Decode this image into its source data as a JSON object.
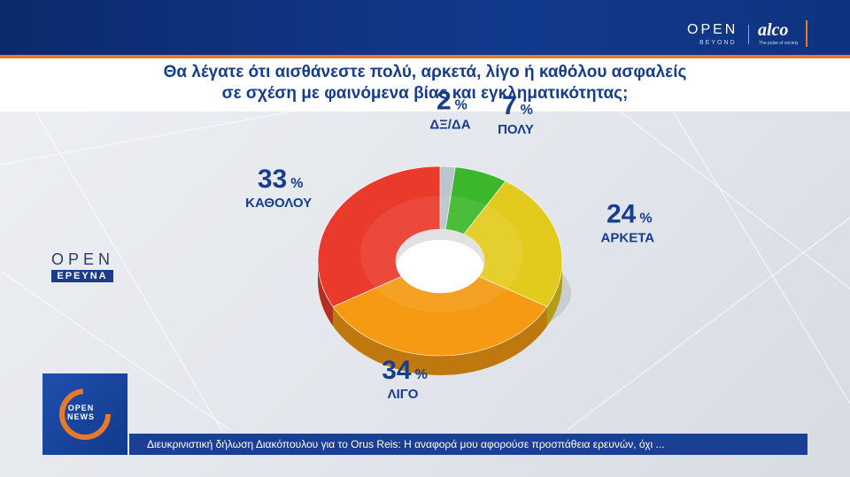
{
  "header": {
    "brand_open": "OPEN",
    "brand_beyond": "BEYOND",
    "brand_alco": "alco",
    "brand_alco_sub": "The pulse of society",
    "colors": {
      "bar": "#123a8c",
      "accent": "#e8792a"
    }
  },
  "title_lines": [
    "Θα λέγατε ότι αισθάνεστε πολύ, αρκετά, λίγο ή καθόλου ασφαλείς",
    "σε σχέση με φαινόμενα βίας και εγκληματικότητας;"
  ],
  "logo": {
    "open": "OPEN",
    "subtitle": "ΕΡΕΥΝΑ"
  },
  "chart_data": {
    "type": "pie",
    "title": "Θα λέγατε ότι αισθάνεστε πολύ, αρκετά, λίγο ή καθόλου ασφαλείς σε σχέση με φαινόμενα βίας και εγκληματικότητας;",
    "donut": true,
    "unit": "%",
    "slices": [
      {
        "label": "ΔΞ/ΔΑ",
        "value": 2,
        "color": "#b9c4cc"
      },
      {
        "label": "ΠΟΛΥ",
        "value": 7,
        "color": "#3cb72b"
      },
      {
        "label": "ΑΡΚΕΤΑ",
        "value": 24,
        "color": "#e3cb1e"
      },
      {
        "label": "ΛΙΓΟ",
        "value": 34,
        "color": "#f59a12"
      },
      {
        "label": "ΚΑΘΟΛΟΥ",
        "value": 33,
        "color": "#e93a2c"
      }
    ]
  },
  "ticker": {
    "logo_top": "OPEN",
    "logo_bottom": "NEWS",
    "text": "Διευκρινιστική δήλωση Διακόπουλου για το Orus Reis: Η αναφορά μου αφορούσε προσπάθεια ερευνών, όχι ..."
  }
}
